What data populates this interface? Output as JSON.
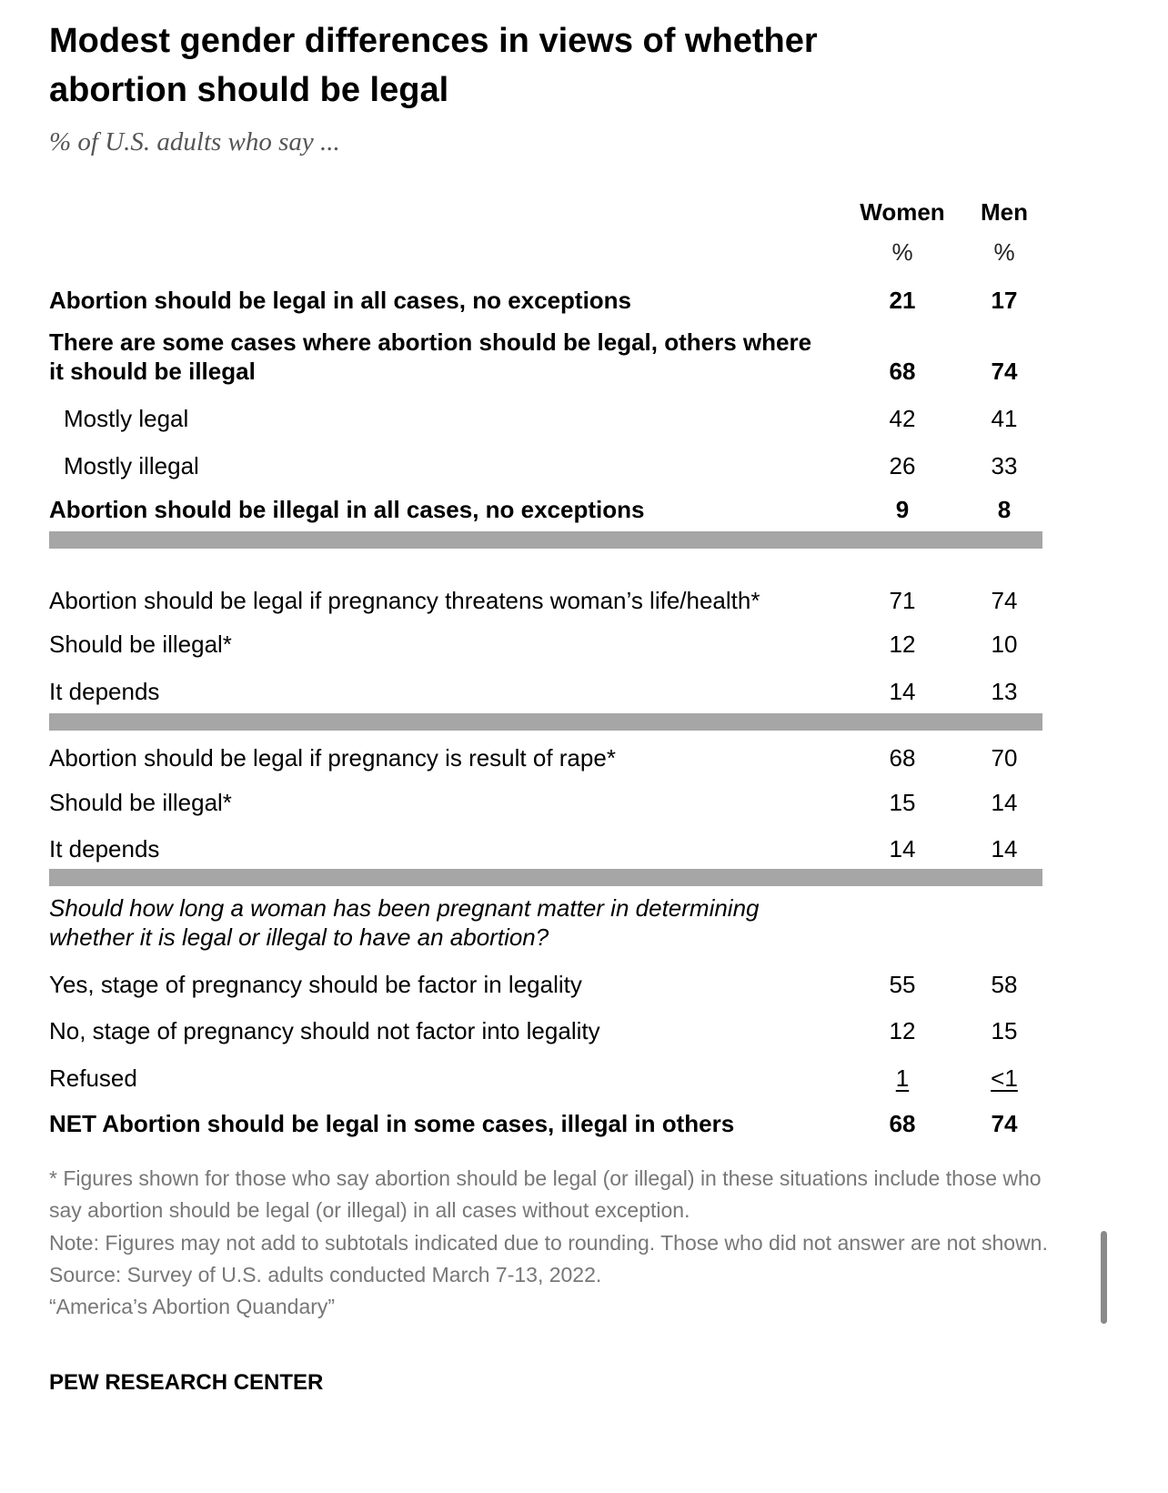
{
  "title": "Modest gender differences in views of whether abortion should be legal",
  "subtitle": "% of U.S. adults who say ...",
  "columns": [
    "Women",
    "Men"
  ],
  "units": [
    "%",
    "%"
  ],
  "rows": [
    {
      "label": "Abortion should be legal in all cases, no exceptions",
      "women": "21",
      "men": "17"
    },
    {
      "label": "There are some cases where abortion should be legal, others where it should be illegal",
      "women": "68",
      "men": "74"
    },
    {
      "label": "Mostly legal",
      "women": "42",
      "men": "41"
    },
    {
      "label": "Mostly illegal",
      "women": "26",
      "men": "33"
    },
    {
      "label": "Abortion should be illegal in all cases, no exceptions",
      "women": "9",
      "men": "8"
    },
    {
      "label": "Abortion should be legal if pregnancy threatens woman’s life/health*",
      "women": "71",
      "men": "74"
    },
    {
      "label": "Should be illegal*",
      "women": "12",
      "men": "10"
    },
    {
      "label": "It depends",
      "women": "14",
      "men": "13"
    },
    {
      "label": "Abortion should be legal if pregnancy is result of rape*",
      "women": "68",
      "men": "70"
    },
    {
      "label": "Should be illegal*",
      "women": "15",
      "men": "14"
    },
    {
      "label": "It depends",
      "women": "14",
      "men": "14"
    },
    {
      "label": "Should how long a woman has been pregnant matter in determining whether it is legal or illegal to have an abortion?",
      "women": "",
      "men": ""
    },
    {
      "label": "Yes, stage of pregnancy should be factor in legality",
      "women": "55",
      "men": "58"
    },
    {
      "label": "No, stage of pregnancy should not factor into legality",
      "women": "12",
      "men": "15"
    },
    {
      "label": "Refused",
      "women": "1",
      "men": "<1"
    },
    {
      "label": "NET Abortion should be legal in some cases, illegal in others",
      "women": "68",
      "men": "74"
    }
  ],
  "chart_data": {
    "type": "table",
    "title": "Modest gender differences in views of whether abortion should be legal",
    "subtitle": "% of U.S. adults who say ...",
    "columns": [
      "Women",
      "Men"
    ],
    "values": [
      [
        21,
        17
      ],
      [
        68,
        74
      ],
      [
        42,
        41
      ],
      [
        26,
        33
      ],
      [
        9,
        8
      ],
      [
        71,
        74
      ],
      [
        12,
        10
      ],
      [
        14,
        13
      ],
      [
        68,
        70
      ],
      [
        15,
        14
      ],
      [
        14,
        14
      ],
      [
        null,
        null
      ],
      [
        55,
        58
      ],
      [
        12,
        15
      ],
      [
        1,
        "<1"
      ],
      [
        68,
        74
      ]
    ]
  },
  "footnotes": [
    "* Figures shown for those who say abortion should be legal (or illegal) in these situations include those who say abortion should be legal (or illegal) in all cases without exception.",
    "Note: Figures may not add to subtotals indicated due to rounding. Those who did not answer are not shown.",
    "Source: Survey of U.S. adults conducted March 7-13, 2022.",
    "“America’s Abortion Quandary”"
  ],
  "brand": "PEW RESEARCH CENTER",
  "colors": {
    "separator": "#a6a6a6",
    "footnote": "#777777"
  }
}
